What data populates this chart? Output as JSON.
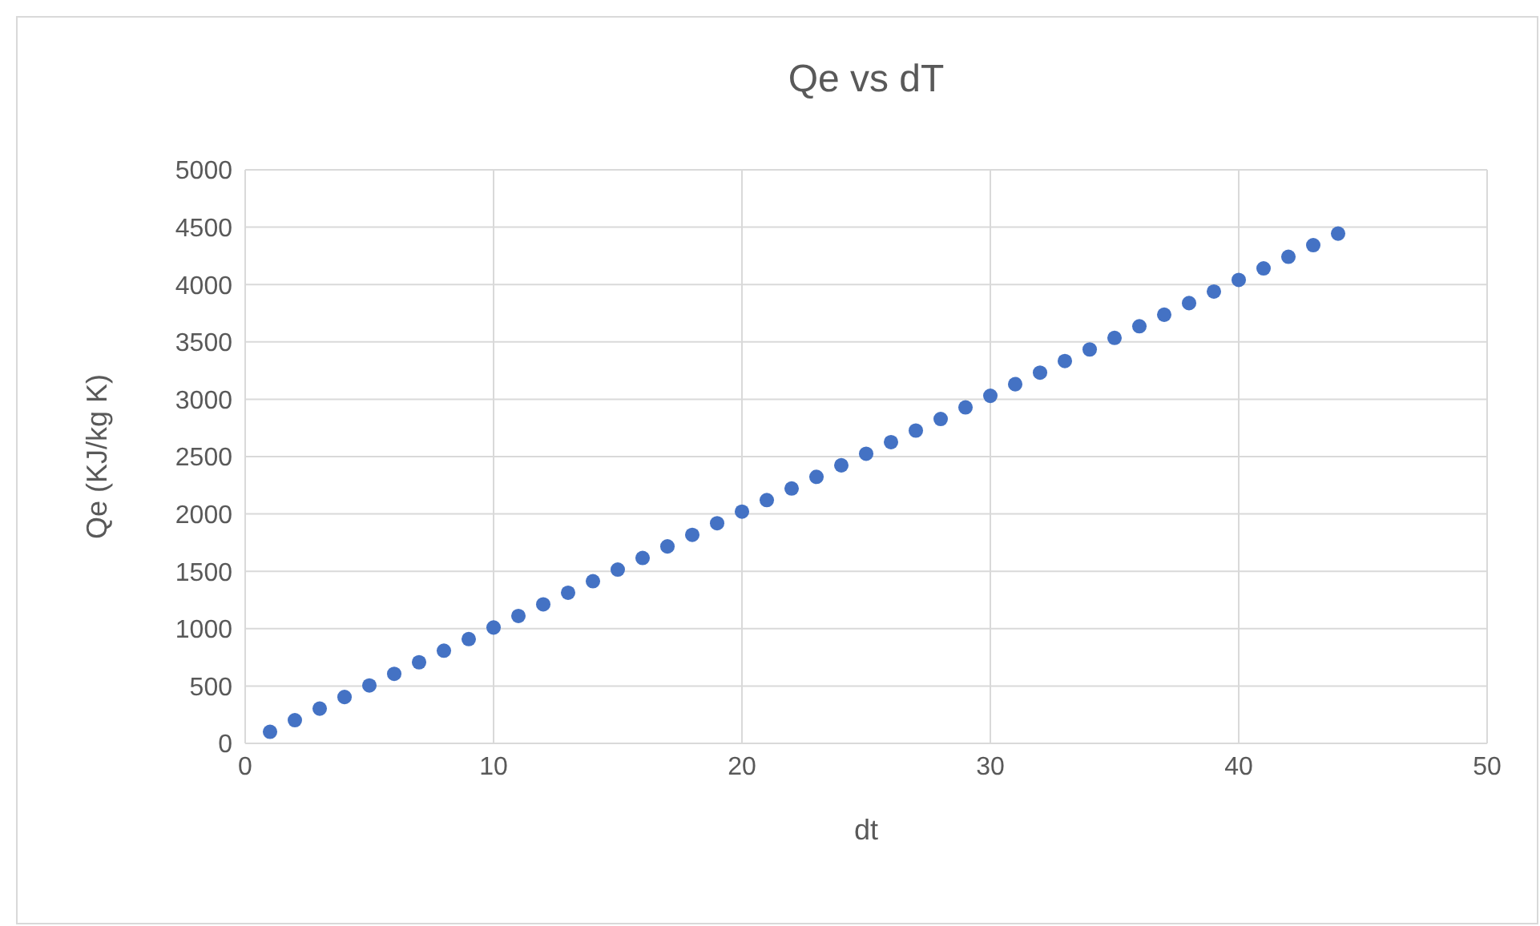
{
  "chart_data": {
    "type": "scatter",
    "title": "Qe vs dT",
    "xlabel": "dt",
    "ylabel": "Qe (KJ/kg K)",
    "x": [
      1,
      2,
      3,
      4,
      5,
      6,
      7,
      8,
      9,
      10,
      11,
      12,
      13,
      14,
      15,
      16,
      17,
      18,
      19,
      20,
      21,
      22,
      23,
      24,
      25,
      26,
      27,
      28,
      29,
      30,
      31,
      32,
      33,
      34,
      35,
      36,
      37,
      38,
      39,
      40,
      41,
      42,
      43,
      44
    ],
    "series": [
      {
        "color": "#4472c4",
        "values": [
          101,
          202,
          303,
          404,
          505,
          606,
          707,
          808,
          909,
          1010,
          1111,
          1212,
          1313,
          1414,
          1515,
          1616,
          1717,
          1818,
          1919,
          2020,
          2121,
          2222,
          2323,
          2424,
          2525,
          2626,
          2727,
          2828,
          2929,
          3030,
          3131,
          3232,
          3333,
          3434,
          3535,
          3636,
          3737,
          3838,
          3939,
          4040,
          4141,
          4242,
          4343,
          4444
        ]
      }
    ],
    "xlim": [
      0,
      50
    ],
    "xticks": [
      0,
      10,
      20,
      30,
      40,
      50
    ],
    "ylim": [
      0,
      5000
    ],
    "yticks": [
      0,
      500,
      1000,
      1500,
      2000,
      2500,
      3000,
      3500,
      4000,
      4500,
      5000
    ],
    "grid": true,
    "marker": "circle",
    "legend": false
  }
}
